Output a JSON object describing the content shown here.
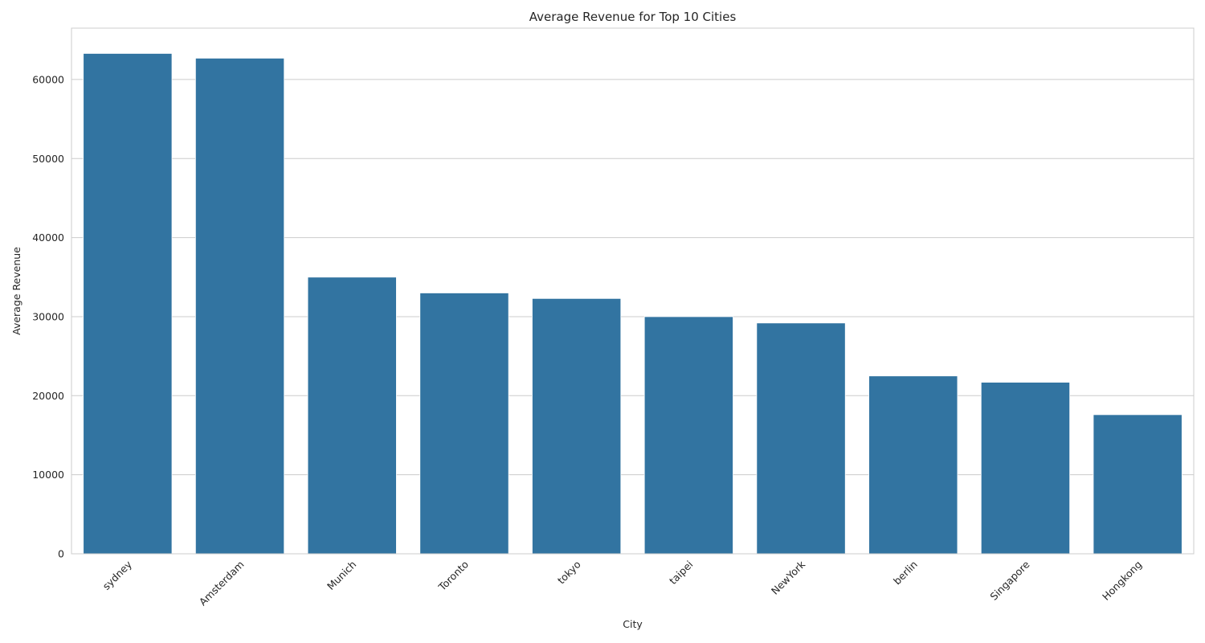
{
  "chart_data": {
    "type": "bar",
    "title": "Average Revenue for Top 10 Cities",
    "xlabel": "City",
    "ylabel": "Average Revenue",
    "categories": [
      "sydney",
      "Amsterdam",
      "Munich",
      "Toronto",
      "tokyo",
      "taipei",
      "NewYork",
      "berlin",
      "Singapore",
      "Hongkong"
    ],
    "values": [
      63300,
      62700,
      35000,
      33000,
      32300,
      30000,
      29200,
      22500,
      21700,
      17600
    ],
    "ylim": [
      0,
      66500
    ],
    "yticks": [
      0,
      10000,
      20000,
      30000,
      40000,
      50000,
      60000
    ],
    "ytick_labels": [
      "0",
      "10000",
      "20000",
      "30000",
      "40000",
      "50000",
      "60000"
    ],
    "bar_color": "#3274a1",
    "grid": true,
    "grid_axis": "y",
    "xtick_rotation": 45
  }
}
